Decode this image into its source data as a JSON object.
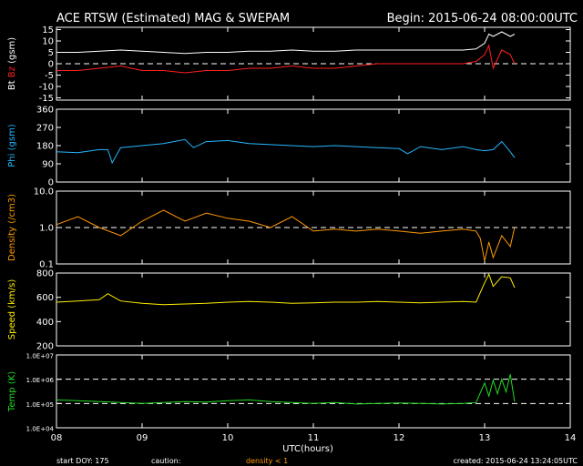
{
  "header": {
    "title": "ACE RTSW (Estimated) MAG & SWEPAM",
    "begin": "Begin: 2015-06-24 08:00:00UTC"
  },
  "footer": {
    "start_doy": "start DOY: 175",
    "caution": "caution:",
    "density_note": "density < 1",
    "created": "created: 2015-06-24 13:24:05UTC"
  },
  "colors": {
    "bt": "#ffffff",
    "bz": "#ff2020",
    "phi": "#26b6ff",
    "density": "#ff9900",
    "speed": "#ffee00",
    "temp": "#22dd22",
    "axis": "#ffffff",
    "background": "#000000"
  },
  "chart_data": [
    {
      "type": "line",
      "panel": "mag_b",
      "ylabel_parts": [
        "Bt",
        "Bz",
        "(gsm)"
      ],
      "y_ticks": [
        "15",
        "10",
        "5",
        "0",
        "-5",
        "-10",
        "-15"
      ],
      "ylim": [
        -16,
        16
      ],
      "reference_lines": [
        0
      ],
      "series": [
        {
          "name": "Bt",
          "color": "#ffffff",
          "x": [
            8.0,
            8.25,
            8.5,
            8.75,
            9.0,
            9.25,
            9.5,
            9.75,
            10.0,
            10.25,
            10.5,
            10.75,
            11.0,
            11.25,
            11.5,
            11.75,
            12.0,
            12.25,
            12.5,
            12.75,
            12.9,
            13.0,
            13.05,
            13.1,
            13.2,
            13.3,
            13.35
          ],
          "y": [
            5,
            5,
            5.5,
            6,
            5.5,
            5,
            4.5,
            5,
            5,
            5.5,
            5.5,
            6,
            5.5,
            5.5,
            6,
            6,
            6,
            6,
            6,
            6,
            6.5,
            9,
            13,
            12,
            14,
            12,
            13
          ]
        },
        {
          "name": "Bz",
          "color": "#ff2020",
          "x": [
            8.0,
            8.25,
            8.5,
            8.75,
            9.0,
            9.25,
            9.5,
            9.75,
            10.0,
            10.25,
            10.5,
            10.75,
            11.0,
            11.25,
            11.5,
            11.75,
            12.0,
            12.25,
            12.5,
            12.75,
            12.9,
            13.0,
            13.05,
            13.1,
            13.2,
            13.3,
            13.35
          ],
          "y": [
            -3,
            -3,
            -2,
            -1,
            -3,
            -3,
            -4,
            -3,
            -3,
            -2,
            -2,
            -1,
            -2,
            -2,
            -1,
            0,
            0,
            0,
            0,
            0,
            1,
            4,
            8,
            -2,
            6,
            4,
            0
          ]
        }
      ]
    },
    {
      "type": "line",
      "panel": "phi",
      "ylabel": "Phi (gsm)",
      "y_ticks": [
        "360",
        "270",
        "180",
        "90",
        "0"
      ],
      "ylim": [
        0,
        360
      ],
      "series": [
        {
          "name": "Phi",
          "color": "#26b6ff",
          "x": [
            8.0,
            8.25,
            8.5,
            8.6,
            8.65,
            8.75,
            9.0,
            9.25,
            9.5,
            9.6,
            9.75,
            10.0,
            10.25,
            10.5,
            10.75,
            11.0,
            11.25,
            11.5,
            11.75,
            12.0,
            12.1,
            12.25,
            12.5,
            12.75,
            12.9,
            13.0,
            13.1,
            13.2,
            13.3,
            13.35
          ],
          "y": [
            150,
            145,
            160,
            160,
            95,
            170,
            180,
            190,
            210,
            170,
            200,
            205,
            190,
            185,
            180,
            175,
            180,
            175,
            170,
            165,
            140,
            175,
            160,
            175,
            160,
            155,
            160,
            200,
            150,
            120
          ]
        }
      ]
    },
    {
      "type": "line",
      "panel": "density",
      "ylabel": "Density (/cm3)",
      "y_ticks": [
        "10.0",
        "1.0",
        "0.1"
      ],
      "ylim": [
        0.1,
        10
      ],
      "log_scale": true,
      "reference_lines": [
        1.0
      ],
      "series": [
        {
          "name": "Density",
          "color": "#ff9900",
          "x": [
            8.0,
            8.25,
            8.5,
            8.75,
            9.0,
            9.25,
            9.5,
            9.75,
            10.0,
            10.25,
            10.5,
            10.75,
            11.0,
            11.25,
            11.5,
            11.75,
            12.0,
            12.25,
            12.5,
            12.75,
            12.9,
            12.95,
            13.0,
            13.05,
            13.1,
            13.2,
            13.3,
            13.35
          ],
          "y": [
            1.2,
            2.0,
            1.0,
            0.6,
            1.5,
            3.0,
            1.5,
            2.5,
            1.8,
            1.5,
            1.0,
            2.0,
            0.8,
            0.9,
            0.8,
            0.9,
            0.8,
            0.7,
            0.8,
            0.9,
            0.8,
            0.5,
            0.12,
            0.4,
            0.15,
            0.6,
            0.3,
            1.0
          ]
        }
      ]
    },
    {
      "type": "line",
      "panel": "speed",
      "ylabel": "Speed (km/s)",
      "y_ticks": [
        "800",
        "600",
        "400",
        "200"
      ],
      "ylim": [
        200,
        800
      ],
      "series": [
        {
          "name": "Speed",
          "color": "#ffee00",
          "x": [
            8.0,
            8.25,
            8.5,
            8.6,
            8.75,
            9.0,
            9.25,
            9.5,
            9.75,
            10.0,
            10.25,
            10.5,
            10.75,
            11.0,
            11.25,
            11.5,
            11.75,
            12.0,
            12.25,
            12.5,
            12.75,
            12.9,
            13.0,
            13.05,
            13.1,
            13.2,
            13.3,
            13.35
          ],
          "y": [
            560,
            570,
            580,
            630,
            570,
            550,
            540,
            545,
            550,
            560,
            565,
            560,
            550,
            555,
            560,
            560,
            565,
            560,
            555,
            560,
            565,
            560,
            720,
            790,
            690,
            770,
            760,
            680
          ]
        }
      ]
    },
    {
      "type": "line",
      "panel": "temp",
      "ylabel": "Temp (K)",
      "y_ticks": [
        "1.0E+07",
        "1.0E+06",
        "1.0E+05",
        "1.0E+04"
      ],
      "ylim": [
        10000,
        10000000
      ],
      "log_scale": true,
      "reference_lines": [
        100000,
        1000000
      ],
      "series": [
        {
          "name": "Temp",
          "color": "#22dd22",
          "x": [
            8.0,
            8.25,
            8.5,
            8.75,
            9.0,
            9.25,
            9.5,
            9.75,
            10.0,
            10.25,
            10.5,
            10.75,
            11.0,
            11.25,
            11.5,
            11.75,
            12.0,
            12.25,
            12.5,
            12.75,
            12.9,
            13.0,
            13.05,
            13.1,
            13.15,
            13.2,
            13.25,
            13.3,
            13.35
          ],
          "y": [
            140000,
            130000,
            120000,
            110000,
            100000,
            110000,
            120000,
            115000,
            130000,
            140000,
            120000,
            110000,
            100000,
            110000,
            95000,
            100000,
            105000,
            100000,
            95000,
            100000,
            110000,
            700000,
            200000,
            900000,
            250000,
            1000000,
            300000,
            1600000,
            120000
          ]
        }
      ]
    }
  ],
  "x_axis": {
    "type": "line",
    "xlabel": "UTC(hours)",
    "xlim": [
      8,
      14
    ],
    "tick_labels": [
      "08",
      "09",
      "10",
      "11",
      "12",
      "13",
      "14"
    ]
  }
}
